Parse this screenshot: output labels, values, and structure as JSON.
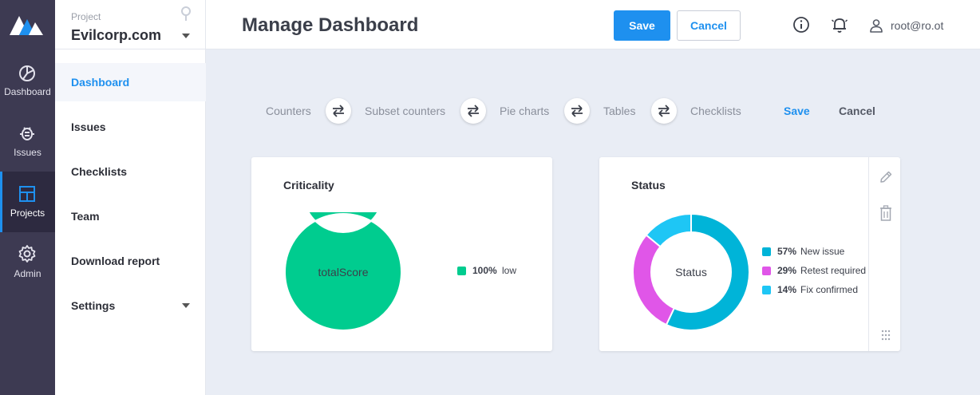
{
  "rail": {
    "items": [
      {
        "label": "Dashboard",
        "icon": "dashboard-icon"
      },
      {
        "label": "Issues",
        "icon": "bug-icon"
      },
      {
        "label": "Projects",
        "icon": "projects-icon"
      },
      {
        "label": "Admin",
        "icon": "gear-icon"
      }
    ],
    "active": "Projects"
  },
  "project": {
    "caption": "Project",
    "name": "Evilcorp.com"
  },
  "sidebar": {
    "items": [
      {
        "label": "Dashboard"
      },
      {
        "label": "Issues"
      },
      {
        "label": "Checklists"
      },
      {
        "label": "Team"
      },
      {
        "label": "Download report"
      },
      {
        "label": "Settings"
      }
    ],
    "active": "Dashboard"
  },
  "header": {
    "title": "Manage Dashboard",
    "save_label": "Save",
    "cancel_label": "Cancel",
    "user": "root@ro.ot"
  },
  "widget_bar": {
    "items": [
      "Counters",
      "Subset counters",
      "Pie charts",
      "Tables",
      "Checklists"
    ],
    "save_label": "Save",
    "cancel_label": "Cancel"
  },
  "colors": {
    "accent": "#1e90ef",
    "low": "#00cc8f",
    "new_issue": "#00b4d8",
    "retest_required": "#e056e8",
    "fix_confirmed": "#1ec6f5"
  },
  "chart_data": [
    {
      "type": "pie",
      "title": "Criticality",
      "center_label": "totalScore",
      "slices": [
        {
          "label": "low",
          "value": 100,
          "display": "100%",
          "color": "#00cc8f"
        }
      ]
    },
    {
      "type": "pie",
      "title": "Status",
      "center_label": "Status",
      "slices": [
        {
          "label": "New issue",
          "value": 57,
          "display": "57%",
          "color": "#00b4d8"
        },
        {
          "label": "Retest required",
          "value": 29,
          "display": "29%",
          "color": "#e056e8"
        },
        {
          "label": "Fix confirmed",
          "value": 14,
          "display": "14%",
          "color": "#1ec6f5"
        }
      ]
    }
  ]
}
